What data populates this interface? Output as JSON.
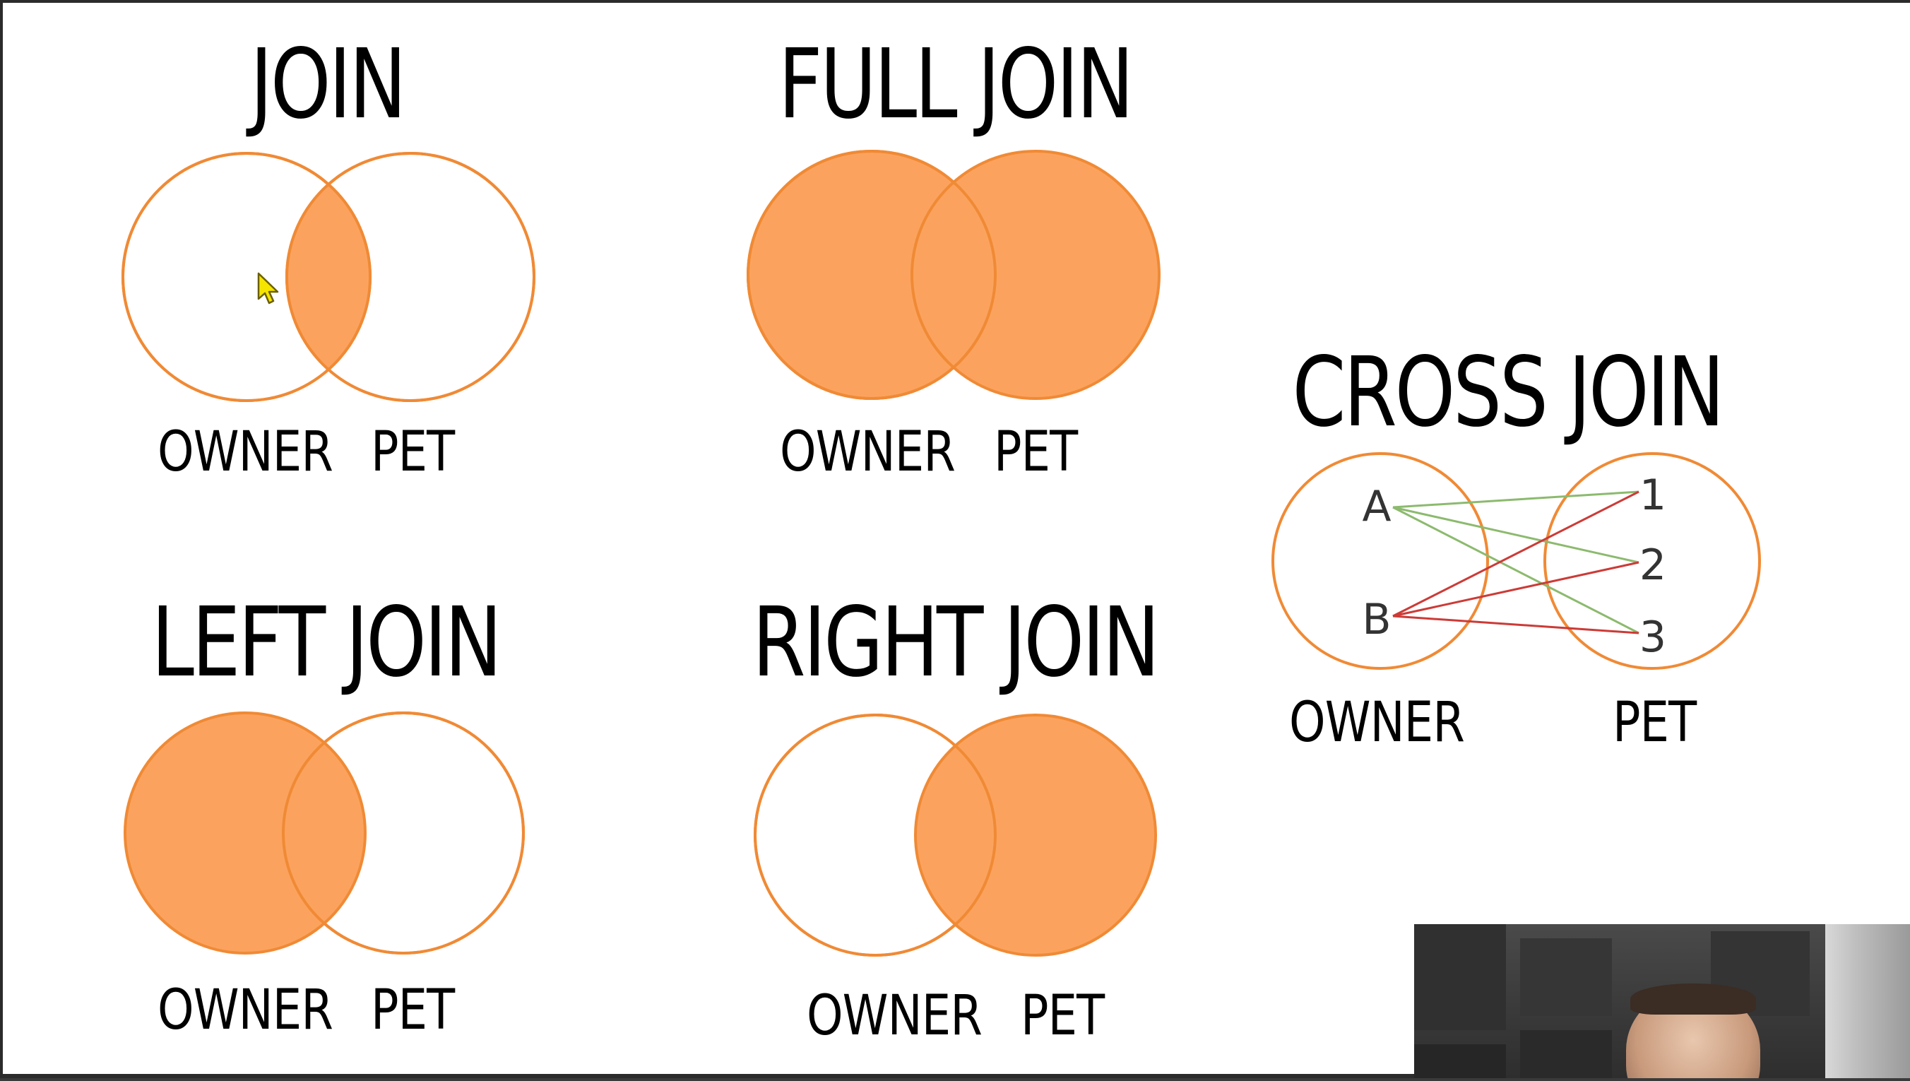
{
  "colors": {
    "fill": "#fba35e",
    "stroke": "#f08a35",
    "ink": "#000000",
    "match_line": "#8cba6e",
    "cross_line": "#cc3b37"
  },
  "join": {
    "title": "JOIN",
    "left_label": "OWNER",
    "right_label": "PET",
    "filled": "intersection"
  },
  "full_join": {
    "title": "FULL JOIN",
    "left_label": "OWNER",
    "right_label": "PET",
    "filled": "both"
  },
  "left_join": {
    "title": "LEFT JOIN",
    "left_label": "OWNER",
    "right_label": "PET",
    "filled": "left"
  },
  "right_join": {
    "title": "RIGHT JOIN",
    "left_label": "OWNER",
    "right_label": "PET",
    "filled": "right"
  },
  "cross_join": {
    "title": "CROSS JOIN",
    "left_label": "OWNER",
    "right_label": "PET",
    "owners": [
      "A",
      "B"
    ],
    "pets": [
      "1",
      "2",
      "3"
    ],
    "edges": [
      {
        "from": "A",
        "to": "1",
        "color": "match_line"
      },
      {
        "from": "A",
        "to": "2",
        "color": "match_line"
      },
      {
        "from": "A",
        "to": "3",
        "color": "match_line"
      },
      {
        "from": "B",
        "to": "1",
        "color": "cross_line"
      },
      {
        "from": "B",
        "to": "2",
        "color": "cross_line"
      },
      {
        "from": "B",
        "to": "3",
        "color": "cross_line"
      }
    ]
  },
  "cursor": "mouse-pointer-icon",
  "webcam": "presenter-webcam-feed"
}
